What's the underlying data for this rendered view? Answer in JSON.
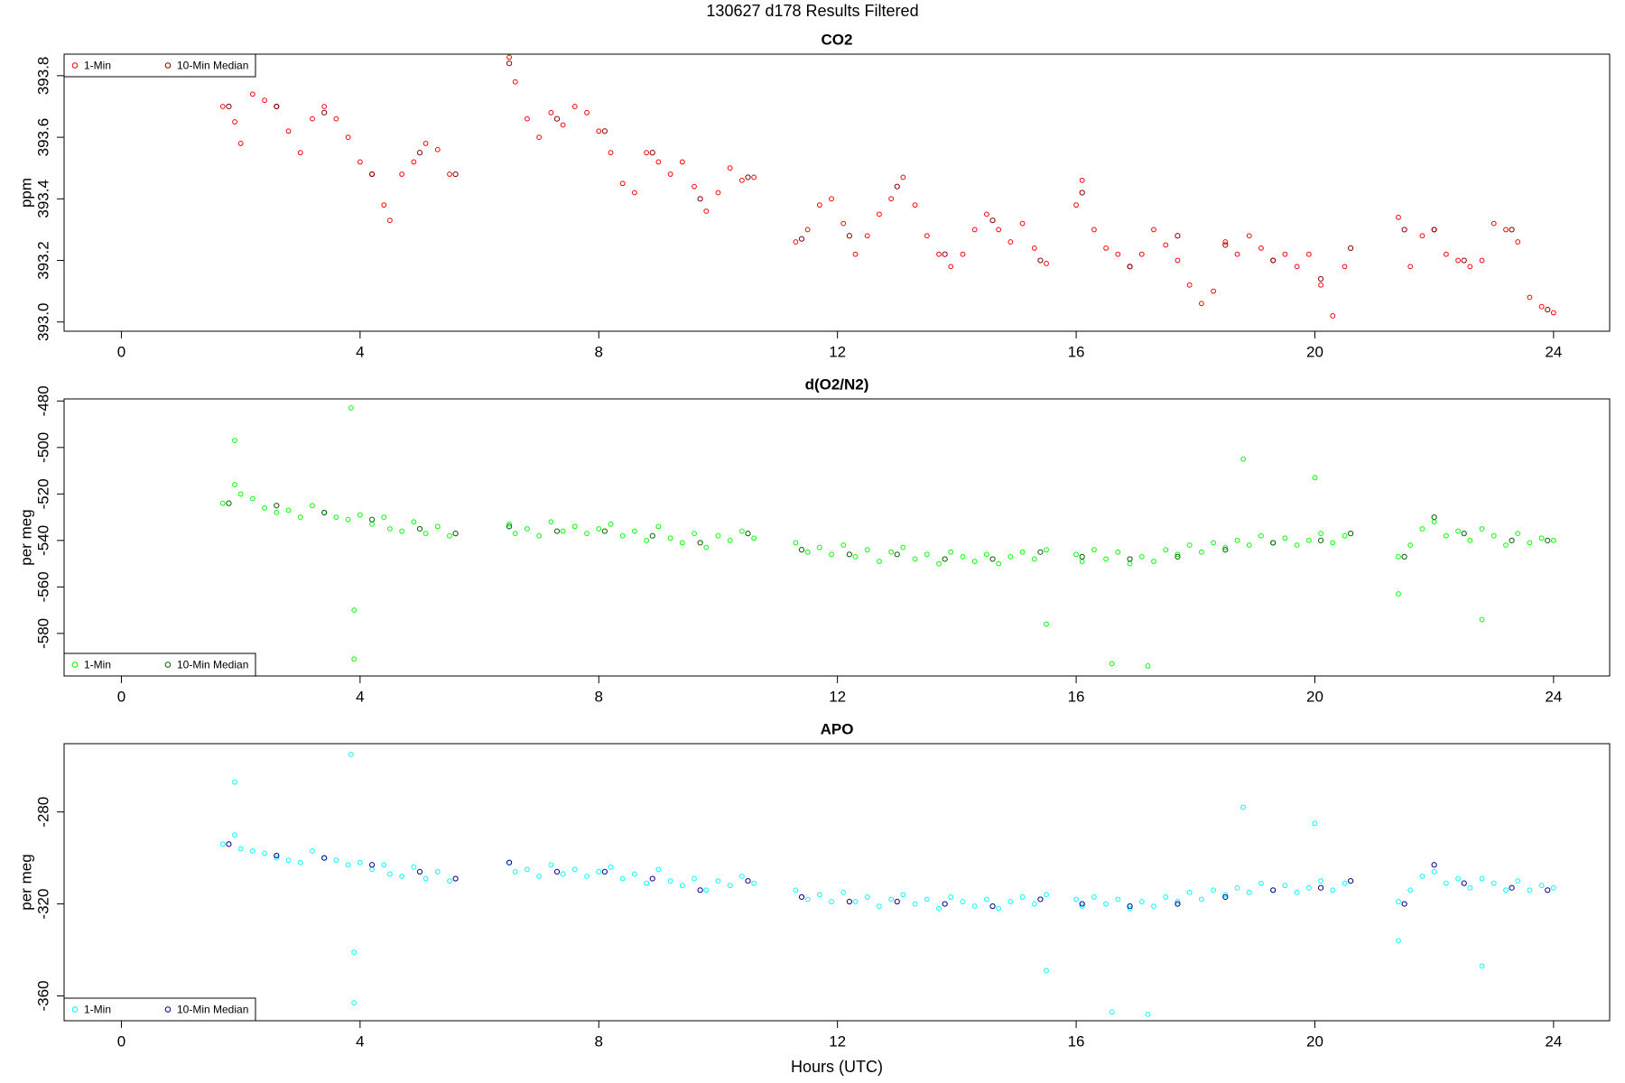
{
  "title": "130627   d178   Results Filtered",
  "chart_data": [
    {
      "type": "scatter",
      "title": "CO2",
      "y_label": "ppm",
      "legend": "topleft",
      "xlim": [
        -0.96,
        24.94
      ],
      "xticks": [
        0,
        4,
        8,
        12,
        16,
        20,
        24
      ],
      "ylim": [
        392.97,
        393.87
      ],
      "yticks": [
        {
          "value": 393.0,
          "label": "393.0"
        },
        {
          "value": 393.2,
          "label": "393.2"
        },
        {
          "value": 393.4,
          "label": "393.4"
        },
        {
          "value": 393.6,
          "label": "393.6"
        },
        {
          "value": 393.8,
          "label": "393.8"
        }
      ],
      "series": [
        {
          "name": "1-Min",
          "color": "#ff0000",
          "x": [
            1.7,
            1.9,
            2.0,
            2.2,
            2.4,
            2.6,
            2.8,
            3.0,
            3.2,
            3.4,
            3.6,
            3.8,
            4.0,
            4.2,
            4.4,
            4.5,
            4.7,
            4.9,
            5.1,
            5.3,
            5.5,
            6.5,
            6.6,
            6.8,
            7.0,
            7.2,
            7.4,
            7.6,
            7.8,
            8.0,
            8.2,
            8.4,
            8.6,
            8.8,
            9.0,
            9.2,
            9.4,
            9.6,
            9.8,
            10.0,
            10.2,
            10.4,
            10.6,
            11.3,
            11.5,
            11.7,
            11.9,
            12.1,
            12.3,
            12.5,
            12.7,
            12.9,
            13.1,
            13.3,
            13.5,
            13.7,
            13.9,
            14.1,
            14.3,
            14.5,
            14.7,
            14.9,
            15.1,
            15.3,
            15.5,
            16.0,
            16.1,
            16.3,
            16.5,
            16.7,
            16.9,
            17.1,
            17.3,
            17.5,
            17.7,
            17.9,
            18.1,
            18.3,
            18.5,
            18.7,
            18.9,
            19.1,
            19.3,
            19.5,
            19.7,
            19.9,
            20.1,
            20.3,
            20.5,
            21.4,
            21.6,
            21.8,
            22.0,
            22.2,
            22.4,
            22.6,
            22.8,
            23.0,
            23.2,
            23.4,
            23.6,
            23.8,
            24.0
          ],
          "values": [
            393.7,
            393.65,
            393.58,
            393.74,
            393.72,
            393.7,
            393.62,
            393.55,
            393.66,
            393.7,
            393.66,
            393.6,
            393.52,
            393.48,
            393.38,
            393.33,
            393.48,
            393.52,
            393.58,
            393.56,
            393.48,
            393.86,
            393.78,
            393.66,
            393.6,
            393.68,
            393.64,
            393.7,
            393.68,
            393.62,
            393.55,
            393.45,
            393.42,
            393.55,
            393.52,
            393.48,
            393.52,
            393.44,
            393.36,
            393.42,
            393.5,
            393.46,
            393.47,
            393.26,
            393.3,
            393.38,
            393.4,
            393.32,
            393.22,
            393.28,
            393.35,
            393.4,
            393.47,
            393.38,
            393.28,
            393.22,
            393.18,
            393.22,
            393.3,
            393.35,
            393.3,
            393.26,
            393.32,
            393.24,
            393.19,
            393.38,
            393.46,
            393.3,
            393.24,
            393.22,
            393.18,
            393.22,
            393.3,
            393.25,
            393.2,
            393.12,
            393.06,
            393.1,
            393.26,
            393.22,
            393.28,
            393.24,
            393.2,
            393.22,
            393.18,
            393.22,
            393.12,
            393.02,
            393.18,
            393.34,
            393.18,
            393.28,
            393.3,
            393.22,
            393.2,
            393.18,
            393.2,
            393.32,
            393.3,
            393.26,
            393.08,
            393.05,
            393.03
          ]
        },
        {
          "name": "10-Min Median",
          "color": "#8b0000",
          "x": [
            1.8,
            2.6,
            3.4,
            4.2,
            5.0,
            5.6,
            6.5,
            7.3,
            8.1,
            8.9,
            9.7,
            10.5,
            11.4,
            12.2,
            13.0,
            13.8,
            14.6,
            15.4,
            16.1,
            16.9,
            17.7,
            18.5,
            19.3,
            20.1,
            20.6,
            21.5,
            22.0,
            22.5,
            23.3,
            23.9
          ],
          "values": [
            393.7,
            393.7,
            393.68,
            393.48,
            393.55,
            393.48,
            393.84,
            393.66,
            393.62,
            393.55,
            393.4,
            393.47,
            393.27,
            393.28,
            393.44,
            393.22,
            393.33,
            393.2,
            393.42,
            393.18,
            393.28,
            393.25,
            393.2,
            393.14,
            393.24,
            393.3,
            393.3,
            393.2,
            393.3,
            393.04
          ]
        }
      ]
    },
    {
      "type": "scatter",
      "title": "d(O2/N2)",
      "y_label": "per meg",
      "legend": "bottomleft",
      "xlim": [
        -0.96,
        24.94
      ],
      "xticks": [
        0,
        4,
        8,
        12,
        16,
        20,
        24
      ],
      "ylim": [
        -598.3,
        -479.1
      ],
      "yticks": [
        -580,
        -560,
        -540,
        -520,
        -500,
        -480
      ],
      "series": [
        {
          "name": "1-Min",
          "color": "#00ff00",
          "x": [
            1.7,
            1.9,
            2.0,
            2.2,
            2.4,
            2.6,
            2.8,
            3.0,
            3.2,
            3.4,
            3.6,
            3.8,
            4.0,
            4.2,
            4.4,
            4.5,
            4.7,
            4.9,
            5.1,
            5.3,
            5.5,
            6.5,
            6.6,
            6.8,
            7.0,
            7.2,
            7.4,
            7.6,
            7.8,
            8.0,
            8.2,
            8.4,
            8.6,
            8.8,
            9.0,
            9.2,
            9.4,
            9.6,
            9.8,
            10.0,
            10.2,
            10.4,
            10.6,
            11.3,
            11.5,
            11.7,
            11.9,
            12.1,
            12.3,
            12.5,
            12.7,
            12.9,
            13.1,
            13.3,
            13.5,
            13.7,
            13.9,
            14.1,
            14.3,
            14.5,
            14.7,
            14.9,
            15.1,
            15.3,
            15.5,
            16.0,
            16.1,
            16.3,
            16.5,
            16.7,
            16.9,
            17.1,
            17.3,
            17.5,
            17.7,
            17.9,
            18.1,
            18.3,
            18.5,
            18.7,
            18.9,
            19.1,
            19.3,
            19.5,
            19.7,
            19.9,
            20.1,
            20.3,
            20.5,
            21.4,
            21.6,
            21.8,
            22.0,
            22.2,
            22.4,
            22.6,
            22.8,
            23.0,
            23.2,
            23.4,
            23.6,
            23.8,
            24.0,
            1.9,
            3.85,
            3.9,
            3.9,
            15.5,
            16.6,
            17.2,
            18.8,
            20.0,
            21.4,
            22.8
          ],
          "values": [
            -524,
            -516,
            -520,
            -522,
            -526,
            -528,
            -527,
            -530,
            -525,
            -528,
            -530,
            -531,
            -529,
            -533,
            -530,
            -535,
            -536,
            -532,
            -537,
            -534,
            -538,
            -533,
            -537,
            -535,
            -538,
            -532,
            -536,
            -534,
            -537,
            -535,
            -533,
            -538,
            -536,
            -540,
            -534,
            -539,
            -541,
            -537,
            -543,
            -538,
            -540,
            -536,
            -539,
            -541,
            -545,
            -543,
            -546,
            -542,
            -547,
            -544,
            -549,
            -545,
            -543,
            -548,
            -546,
            -550,
            -545,
            -547,
            -549,
            -546,
            -550,
            -547,
            -545,
            -548,
            -544,
            -546,
            -549,
            -544,
            -548,
            -545,
            -550,
            -547,
            -549,
            -544,
            -546,
            -542,
            -545,
            -541,
            -543,
            -540,
            -542,
            -538,
            -541,
            -539,
            -542,
            -540,
            -537,
            -541,
            -538,
            -547,
            -542,
            -535,
            -532,
            -538,
            -536,
            -540,
            -535,
            -538,
            -542,
            -537,
            -541,
            -539,
            -540,
            -497,
            -483,
            -570,
            -591,
            -576,
            -593,
            -594,
            -505,
            -513,
            -563,
            -574
          ]
        },
        {
          "name": "10-Min Median",
          "color": "#006400",
          "x": [
            1.8,
            2.6,
            3.4,
            4.2,
            5.0,
            5.6,
            6.5,
            7.3,
            8.1,
            8.9,
            9.7,
            10.5,
            11.4,
            12.2,
            13.0,
            13.8,
            14.6,
            15.4,
            16.1,
            16.9,
            17.7,
            18.5,
            19.3,
            20.1,
            20.6,
            21.5,
            22.0,
            22.5,
            23.3,
            23.9
          ],
          "values": [
            -524,
            -525,
            -528,
            -531,
            -535,
            -537,
            -534,
            -536,
            -536,
            -538,
            -541,
            -537,
            -544,
            -546,
            -546,
            -548,
            -548,
            -545,
            -547,
            -548,
            -547,
            -544,
            -541,
            -540,
            -537,
            -547,
            -530,
            -537,
            -540,
            -540
          ]
        }
      ]
    },
    {
      "type": "scatter",
      "title": "APO",
      "y_label": "per meg",
      "x_label": "Hours (UTC)",
      "legend": "bottomleft",
      "xlim": [
        -0.96,
        24.94
      ],
      "xticks": [
        0,
        4,
        8,
        12,
        16,
        20,
        24
      ],
      "ylim": [
        -370.8,
        -250.3
      ],
      "yticks": [
        -360,
        -320,
        -280
      ],
      "series": [
        {
          "name": "1-Min",
          "color": "#00ffff",
          "x": [
            1.7,
            1.9,
            2.0,
            2.2,
            2.4,
            2.6,
            2.8,
            3.0,
            3.2,
            3.4,
            3.6,
            3.8,
            4.0,
            4.2,
            4.4,
            4.5,
            4.7,
            4.9,
            5.1,
            5.3,
            5.5,
            6.5,
            6.6,
            6.8,
            7.0,
            7.2,
            7.4,
            7.6,
            7.8,
            8.0,
            8.2,
            8.4,
            8.6,
            8.8,
            9.0,
            9.2,
            9.4,
            9.6,
            9.8,
            10.0,
            10.2,
            10.4,
            10.6,
            11.3,
            11.5,
            11.7,
            11.9,
            12.1,
            12.3,
            12.5,
            12.7,
            12.9,
            13.1,
            13.3,
            13.5,
            13.7,
            13.9,
            14.1,
            14.3,
            14.5,
            14.7,
            14.9,
            15.1,
            15.3,
            15.5,
            16.0,
            16.1,
            16.3,
            16.5,
            16.7,
            16.9,
            17.1,
            17.3,
            17.5,
            17.7,
            17.9,
            18.1,
            18.3,
            18.5,
            18.7,
            18.9,
            19.1,
            19.3,
            19.5,
            19.7,
            19.9,
            20.1,
            20.3,
            20.5,
            21.4,
            21.6,
            21.8,
            22.0,
            22.2,
            22.4,
            22.6,
            22.8,
            23.0,
            23.2,
            23.4,
            23.6,
            23.8,
            24.0,
            1.9,
            3.85,
            3.9,
            3.9,
            15.5,
            16.6,
            17.2,
            18.8,
            20.0,
            21.4,
            22.8
          ],
          "values": [
            -294,
            -290,
            -296,
            -297,
            -298,
            -300,
            -301,
            -302,
            -297,
            -300,
            -301,
            -303,
            -302,
            -305,
            -303,
            -307,
            -308,
            -304,
            -309,
            -306,
            -310,
            -302,
            -306,
            -305,
            -308,
            -303,
            -307,
            -305,
            -308,
            -306,
            -304,
            -309,
            -307,
            -311,
            -305,
            -310,
            -312,
            -309,
            -314,
            -310,
            -312,
            -308,
            -311,
            -314,
            -318,
            -316,
            -319,
            -315,
            -319,
            -317,
            -321,
            -318,
            -316,
            -320,
            -318,
            -322,
            -317,
            -319,
            -321,
            -318,
            -322,
            -319,
            -317,
            -320,
            -316,
            -318,
            -321,
            -317,
            -320,
            -318,
            -322,
            -319,
            -321,
            -317,
            -319,
            -315,
            -318,
            -314,
            -316,
            -313,
            -315,
            -311,
            -314,
            -312,
            -315,
            -313,
            -310,
            -314,
            -311,
            -319,
            -314,
            -308,
            -306,
            -311,
            -309,
            -313,
            -309,
            -311,
            -314,
            -310,
            -314,
            -312,
            -313,
            -267,
            -255,
            -341,
            -363,
            -349,
            -367,
            -368,
            -278,
            -285,
            -336,
            -347
          ]
        },
        {
          "name": "10-Min Median",
          "color": "#00008b",
          "x": [
            1.8,
            2.6,
            3.4,
            4.2,
            5.0,
            5.6,
            6.5,
            7.3,
            8.1,
            8.9,
            9.7,
            10.5,
            11.4,
            12.2,
            13.0,
            13.8,
            14.6,
            15.4,
            16.1,
            16.9,
            17.7,
            18.5,
            19.3,
            20.1,
            20.6,
            21.5,
            22.0,
            22.5,
            23.3,
            23.9
          ],
          "values": [
            -294,
            -299,
            -300,
            -303,
            -306,
            -309,
            -302,
            -306,
            -306,
            -309,
            -314,
            -310,
            -317,
            -319,
            -319,
            -320,
            -321,
            -318,
            -320,
            -321,
            -320,
            -317,
            -314,
            -313,
            -310,
            -320,
            -303,
            -311,
            -313,
            -314
          ]
        }
      ]
    }
  ]
}
